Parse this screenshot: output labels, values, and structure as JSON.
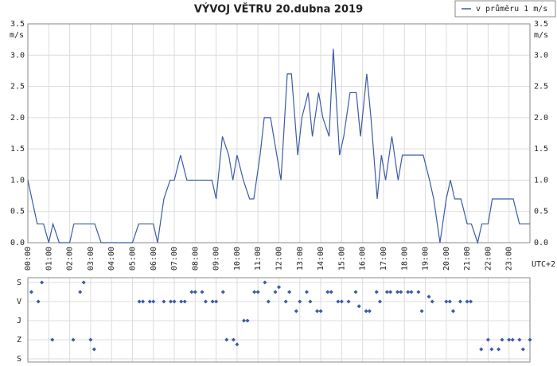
{
  "chart_data": [
    {
      "type": "line",
      "title": "VÝVOJ VĚTRU  20.dubna 2019",
      "ylabel": "m/s",
      "timezone_label": "UTC+2",
      "legend": "top-right",
      "grid": true,
      "xlim": [
        0,
        24
      ],
      "xticks": [
        {
          "value": 0,
          "label": "00:00"
        },
        {
          "value": 1,
          "label": "01:00"
        },
        {
          "value": 2,
          "label": "02:00"
        },
        {
          "value": 3,
          "label": "03:00"
        },
        {
          "value": 4,
          "label": "04:00"
        },
        {
          "value": 5,
          "label": "05:00"
        },
        {
          "value": 6,
          "label": "06:00"
        },
        {
          "value": 7,
          "label": "07:00"
        },
        {
          "value": 8,
          "label": "08:00"
        },
        {
          "value": 9,
          "label": "09:00"
        },
        {
          "value": 10,
          "label": "10:00"
        },
        {
          "value": 11,
          "label": "11:00"
        },
        {
          "value": 12,
          "label": "12:00"
        },
        {
          "value": 13,
          "label": "13:00"
        },
        {
          "value": 14,
          "label": "14:00"
        },
        {
          "value": 15,
          "label": "15:00"
        },
        {
          "value": 16,
          "label": "16:00"
        },
        {
          "value": 17,
          "label": "17:00"
        },
        {
          "value": 18,
          "label": "18:00"
        },
        {
          "value": 19,
          "label": "19:00"
        },
        {
          "value": 20,
          "label": "20:00"
        },
        {
          "value": 21,
          "label": "21:00"
        },
        {
          "value": 22,
          "label": "22:00"
        },
        {
          "value": 23,
          "label": "23:00"
        }
      ],
      "ylim": [
        0,
        3.5
      ],
      "yticks": [
        {
          "value": 0,
          "label": "0.0"
        },
        {
          "value": 0.5,
          "label": "0.5"
        },
        {
          "value": 1,
          "label": "1.0"
        },
        {
          "value": 1.5,
          "label": "1.5"
        },
        {
          "value": 2,
          "label": "2.0"
        },
        {
          "value": 2.5,
          "label": "2.5"
        },
        {
          "value": 3,
          "label": "3.0"
        },
        {
          "value": 3.5,
          "label": "3.5"
        }
      ],
      "x": [
        0,
        0.45,
        0.75,
        1.0,
        1.2,
        1.5,
        2.0,
        2.2,
        3.2,
        3.5,
        5.0,
        5.3,
        6.0,
        6.2,
        6.5,
        6.8,
        7.0,
        7.3,
        7.6,
        8.8,
        9.0,
        9.3,
        9.6,
        9.8,
        10.0,
        10.3,
        10.6,
        10.8,
        11.1,
        11.3,
        11.6,
        11.9,
        12.1,
        12.4,
        12.6,
        12.9,
        13.1,
        13.4,
        13.6,
        13.9,
        14.1,
        14.4,
        14.6,
        14.9,
        15.1,
        15.4,
        15.7,
        15.9,
        16.2,
        16.4,
        16.7,
        16.9,
        17.1,
        17.4,
        17.7,
        17.9,
        18.9,
        19.2,
        19.4,
        19.7,
        20.0,
        20.2,
        20.4,
        20.7,
        21.0,
        21.2,
        21.5,
        21.7,
        22.0,
        22.2,
        23.2,
        23.5,
        24.0
      ],
      "series": [
        {
          "name": "v průměru 1 m/s",
          "color": "#3b5ba5",
          "values": [
            1.0,
            0.3,
            0.3,
            0,
            0.3,
            0,
            0,
            0.3,
            0.3,
            0,
            0,
            0.3,
            0.3,
            0,
            0.7,
            1.0,
            1.0,
            1.4,
            1.0,
            1.0,
            0.7,
            1.7,
            1.4,
            1.0,
            1.4,
            1.0,
            0.7,
            0.7,
            1.4,
            2.0,
            2.0,
            1.4,
            1.0,
            2.7,
            2.7,
            1.4,
            2.0,
            2.4,
            1.7,
            2.4,
            2.0,
            1.7,
            3.1,
            1.4,
            1.7,
            2.4,
            2.4,
            1.7,
            2.7,
            2.0,
            0.7,
            1.4,
            1.0,
            1.7,
            1.0,
            1.4,
            1.4,
            1.0,
            0.7,
            0,
            0.7,
            1.0,
            0.7,
            0.7,
            0.3,
            0.3,
            0,
            0.3,
            0.3,
            0.7,
            0.7,
            0.3,
            0.3
          ]
        }
      ]
    },
    {
      "type": "scatter",
      "color": "#3b5ba5",
      "grid": true,
      "xlim": [
        0,
        24
      ],
      "ylim": [
        -22.5,
        375
      ],
      "y_inverted": true,
      "yticks": [
        {
          "value": 0,
          "label": "S"
        },
        {
          "value": 90,
          "label": "V"
        },
        {
          "value": 180,
          "label": "J"
        },
        {
          "value": 270,
          "label": "Z"
        },
        {
          "value": 360,
          "label": "S"
        }
      ],
      "x": [
        0.17,
        0.5,
        0.67,
        1.17,
        2.17,
        2.5,
        2.67,
        3.0,
        3.17,
        5.33,
        5.5,
        5.83,
        6.0,
        6.5,
        6.83,
        7.0,
        7.33,
        7.5,
        7.83,
        8.0,
        8.33,
        8.5,
        8.83,
        9.0,
        9.33,
        9.5,
        9.83,
        10.0,
        10.33,
        10.5,
        10.83,
        11.0,
        11.33,
        11.5,
        11.83,
        12.0,
        12.33,
        12.5,
        12.83,
        13.0,
        13.33,
        13.5,
        13.83,
        14.0,
        14.33,
        14.5,
        14.83,
        15.0,
        15.33,
        15.67,
        15.83,
        16.17,
        16.33,
        16.67,
        16.83,
        17.17,
        17.33,
        17.67,
        17.83,
        18.17,
        18.33,
        18.67,
        18.83,
        19.17,
        19.33,
        20.0,
        20.17,
        20.33,
        20.67,
        21.0,
        21.17,
        21.67,
        22.0,
        22.17,
        22.5,
        22.67,
        23.0,
        23.17,
        23.5,
        23.67,
        24.0
      ],
      "values": [
        45,
        90,
        0,
        270,
        270,
        45,
        0,
        270,
        315,
        90,
        90,
        90,
        90,
        90,
        90,
        90,
        90,
        90,
        45,
        45,
        45,
        90,
        90,
        90,
        45,
        270,
        270,
        292,
        180,
        180,
        45,
        45,
        0,
        90,
        45,
        22,
        90,
        45,
        135,
        90,
        45,
        90,
        135,
        135,
        45,
        45,
        90,
        90,
        90,
        45,
        112,
        135,
        135,
        45,
        90,
        45,
        45,
        45,
        45,
        45,
        45,
        45,
        135,
        67,
        90,
        90,
        90,
        135,
        90,
        90,
        90,
        315,
        270,
        315,
        315,
        270,
        270,
        270,
        270,
        315,
        270
      ]
    }
  ]
}
